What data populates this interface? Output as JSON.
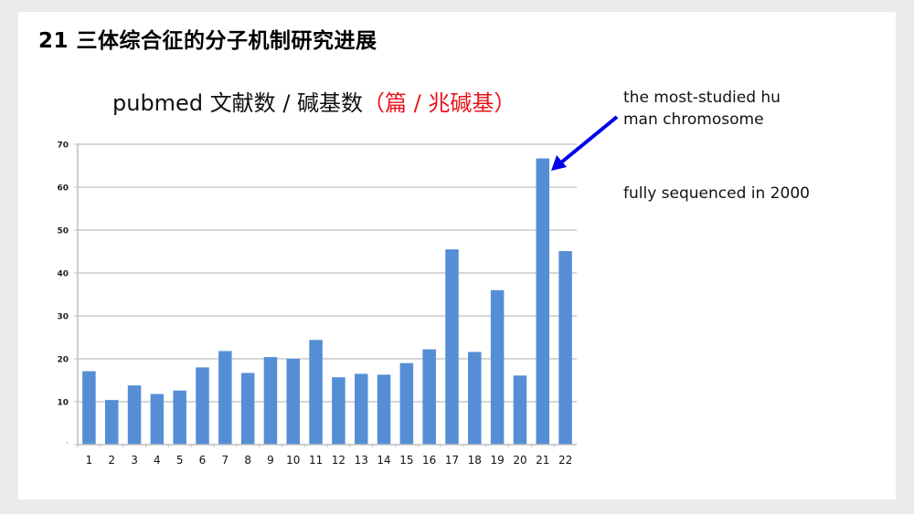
{
  "slide": {
    "title": "21 三体综合征的分子机制研究进展"
  },
  "chart_title": {
    "main": "pubmed 文献数 / 碱基数",
    "unit": "（篇 / 兆碱基）"
  },
  "annotations": {
    "line1": "the most-studied hu",
    "line2": "man chromosome",
    "note": "fully sequenced in 2000"
  },
  "colors": {
    "bar": "#558ed5",
    "arrow": "#0000ee",
    "unit_text": "#e8141b",
    "grid": "#bfbfbf"
  },
  "chart_data": {
    "type": "bar",
    "title": "pubmed 文献数 / 碱基数（篇 / 兆碱基）",
    "xlabel": "",
    "ylabel": "",
    "categories": [
      "1",
      "2",
      "3",
      "4",
      "5",
      "6",
      "7",
      "8",
      "9",
      "10",
      "11",
      "12",
      "13",
      "14",
      "15",
      "16",
      "17",
      "18",
      "19",
      "20",
      "21",
      "22"
    ],
    "values": [
      17.1,
      10.4,
      13.8,
      11.8,
      12.6,
      18.0,
      21.8,
      16.7,
      20.4,
      20.0,
      24.4,
      15.7,
      16.5,
      16.3,
      19.0,
      22.2,
      45.5,
      21.6,
      36.0,
      16.1,
      66.7,
      45.1
    ],
    "ylim": [
      0,
      70
    ],
    "yticks": [
      10,
      20,
      30,
      40,
      50,
      60,
      70
    ],
    "grid": true,
    "legend": null,
    "annotation": {
      "target_category": "21",
      "text": "the most-studied human chromosome",
      "arrow": true
    }
  }
}
